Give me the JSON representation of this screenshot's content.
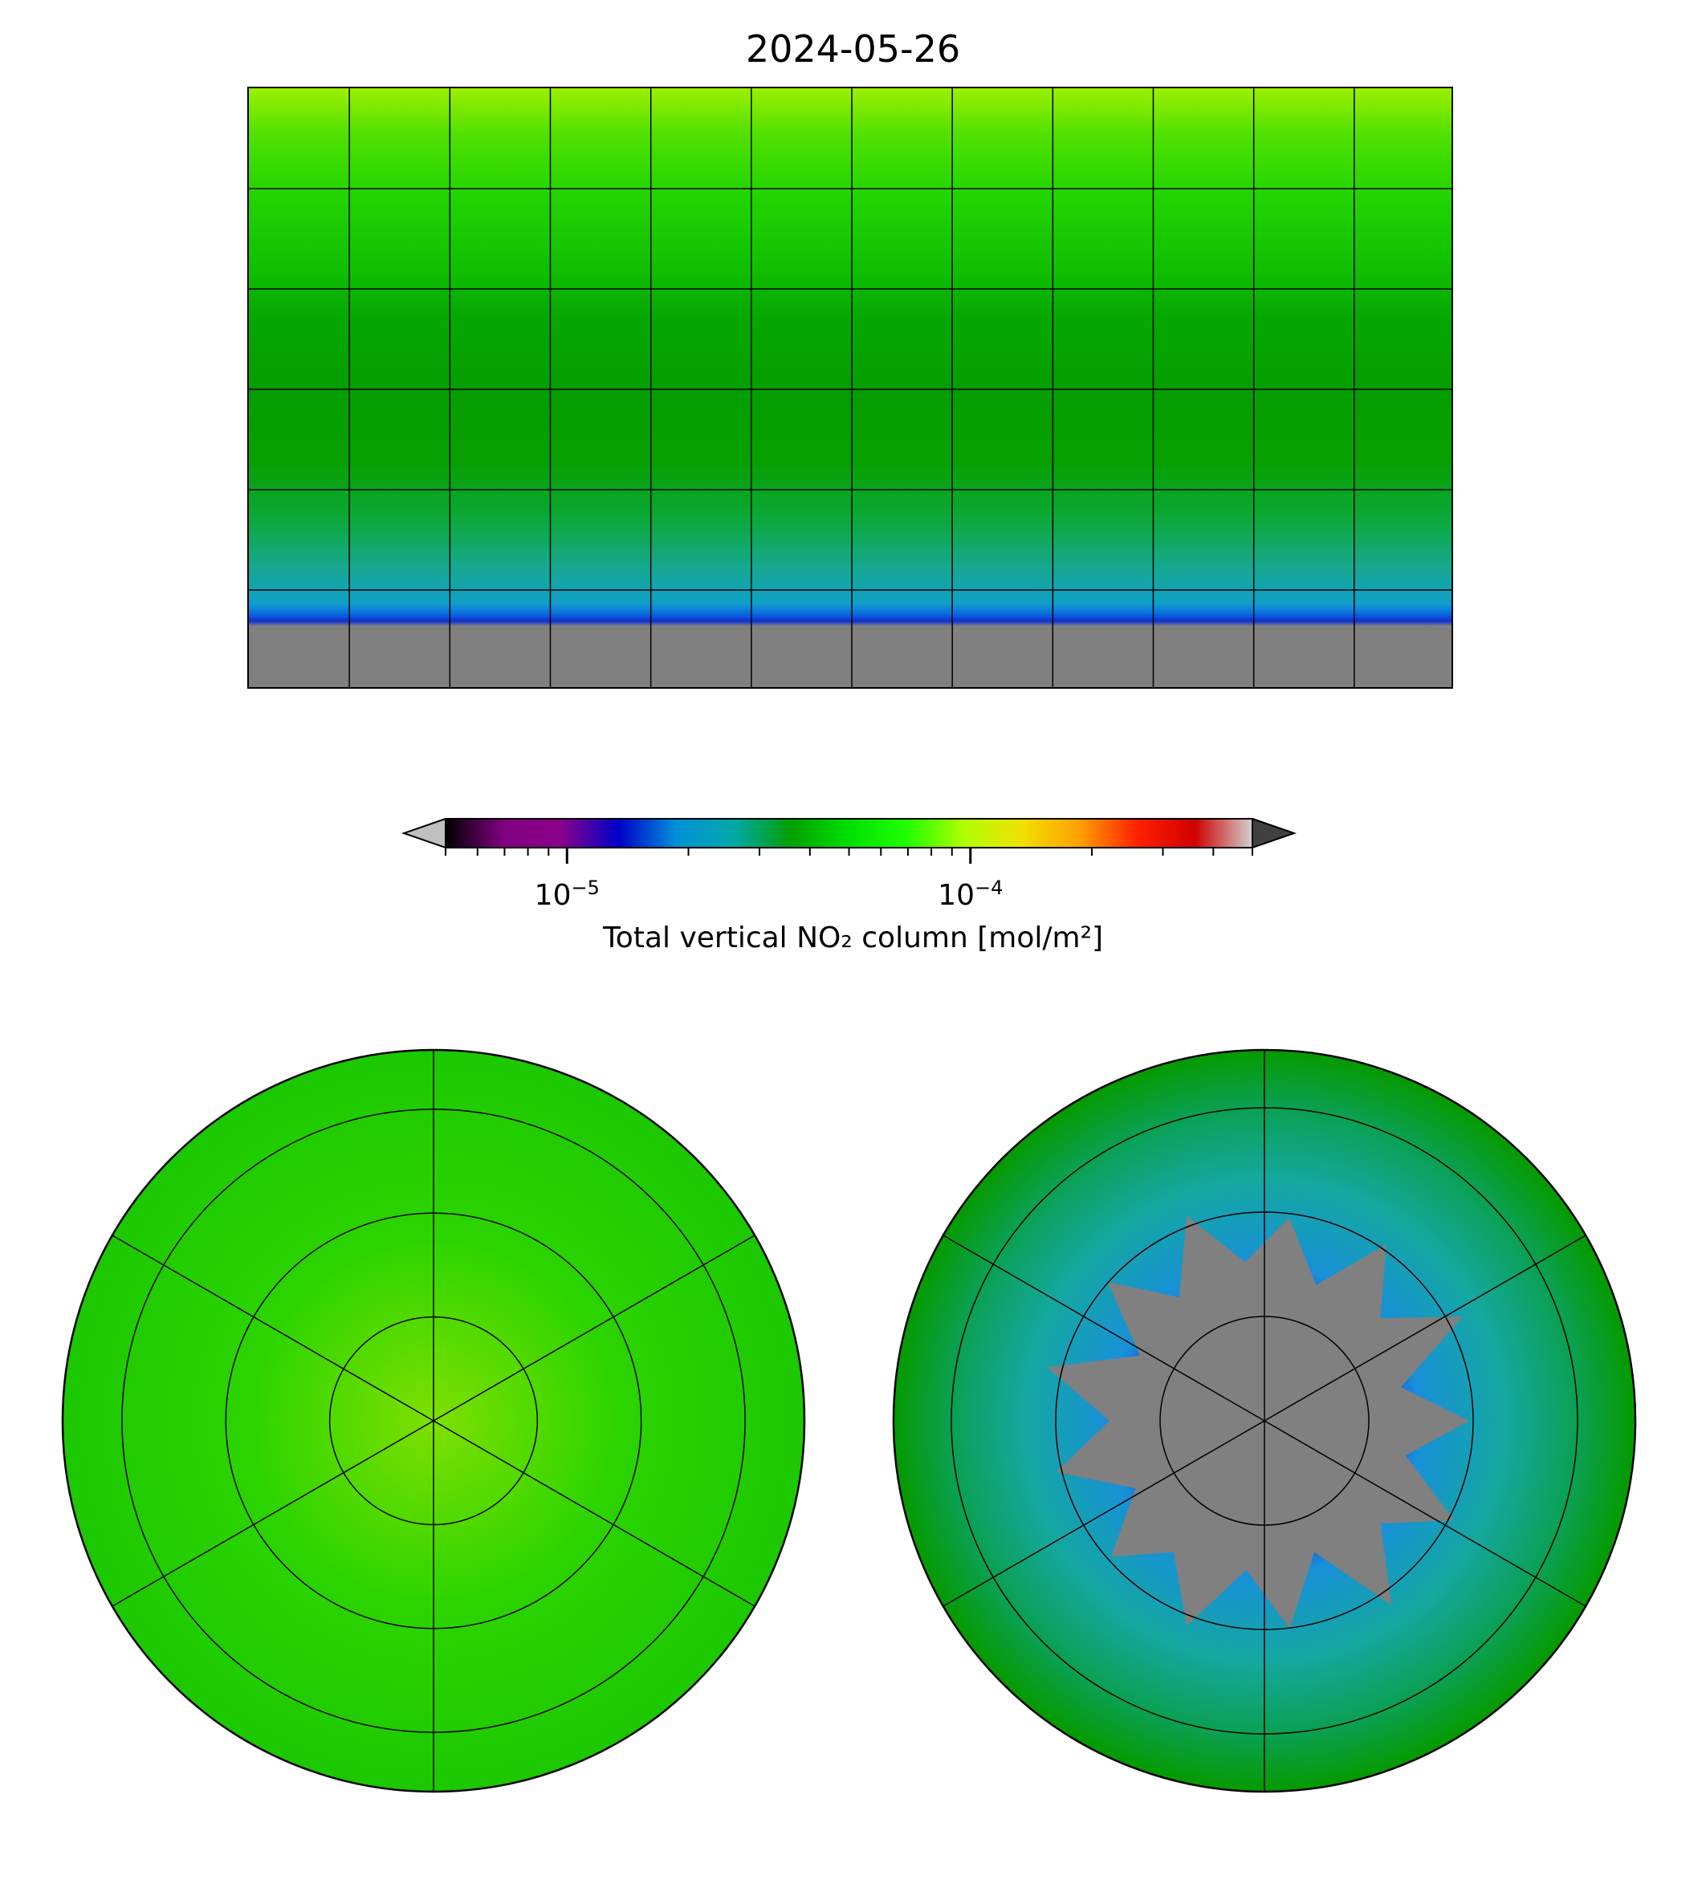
{
  "chart_data": {
    "type": "heatmap",
    "title": "2024-05-26",
    "panels": [
      "global (plate carree)",
      "north polar",
      "south polar"
    ],
    "graticule_lon_step_deg": 30,
    "graticule_lat_step_deg": 30,
    "colorbar": {
      "label": "Total vertical NO₂ column [mol/m²]",
      "scale": "log",
      "range": [
        5e-06,
        0.0005
      ],
      "extend": "both",
      "major_ticks": [
        1e-05,
        0.0001
      ],
      "major_tick_labels": [
        {
          "base": "10",
          "exp": "−5"
        },
        {
          "base": "10",
          "exp": "−4"
        }
      ],
      "colors": [
        "#000000",
        "#800080",
        "#8a008a",
        "#0000c8",
        "#0090d8",
        "#00a8a8",
        "#00a000",
        "#00e000",
        "#20ff00",
        "#b0ff00",
        "#f0e000",
        "#ffa000",
        "#ff2000",
        "#d00000",
        "#d0d0d0"
      ],
      "under_color": "#c0c0c0",
      "over_color": "#404040"
    },
    "missing_color": "#808080"
  }
}
